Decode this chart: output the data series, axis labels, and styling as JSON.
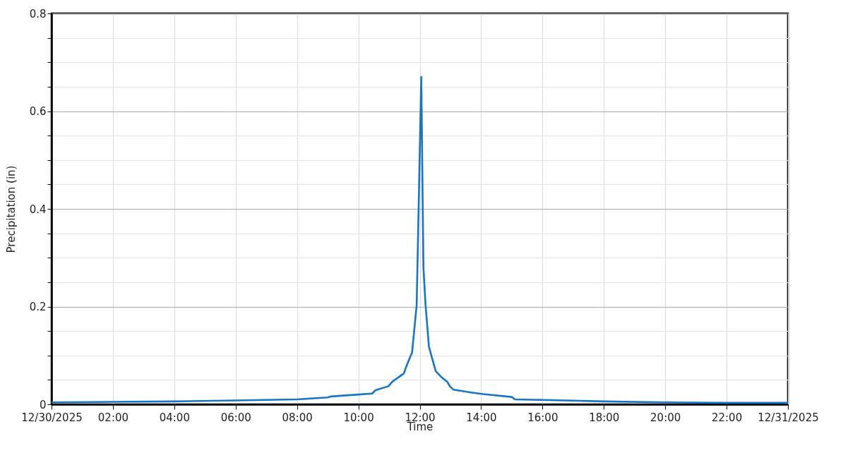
{
  "chart_data": {
    "type": "line",
    "xlabel": "Time",
    "ylabel": "Precipitation (in)",
    "x": [
      0,
      2,
      4,
      6,
      8,
      9,
      9.1,
      10,
      10.45,
      10.56,
      10.98,
      11.1,
      11.48,
      11.59,
      11.75,
      11.9,
      12.05,
      12.12,
      12.19,
      12.3,
      12.52,
      12.7,
      12.9,
      12.98,
      13.1,
      13.6,
      14.06,
      15,
      15.1,
      16,
      18,
      20,
      22,
      24
    ],
    "series": [
      {
        "color": "#1874c4",
        "values": [
          0.004,
          0.005,
          0.006,
          0.008,
          0.01,
          0.014,
          0.016,
          0.02,
          0.022,
          0.029,
          0.037,
          0.046,
          0.063,
          0.082,
          0.106,
          0.203,
          0.67,
          0.28,
          0.203,
          0.118,
          0.068,
          0.056,
          0.046,
          0.037,
          0.03,
          0.025,
          0.021,
          0.015,
          0.01,
          0.009,
          0.006,
          0.004,
          0.003,
          0.003
        ]
      }
    ],
    "xlim": [
      0,
      24
    ],
    "xticks": [
      {
        "value": 0,
        "label": "12/30/2025"
      },
      {
        "value": 2,
        "label": "02:00"
      },
      {
        "value": 4,
        "label": "04:00"
      },
      {
        "value": 6,
        "label": "06:00"
      },
      {
        "value": 8,
        "label": "08:00"
      },
      {
        "value": 10,
        "label": "10:00"
      },
      {
        "value": 12,
        "label": "12:00"
      },
      {
        "value": 14,
        "label": "14:00"
      },
      {
        "value": 16,
        "label": "16:00"
      },
      {
        "value": 18,
        "label": "18:00"
      },
      {
        "value": 20,
        "label": "20:00"
      },
      {
        "value": 22,
        "label": "22:00"
      },
      {
        "value": 24,
        "label": "12/31/2025"
      }
    ],
    "ylim": [
      0,
      0.8
    ],
    "yticks": [
      0,
      {
        "value": 0.05,
        "label": null
      },
      {
        "value": 0.1,
        "label": null
      },
      {
        "value": 0.15,
        "label": null
      },
      0.2,
      {
        "value": 0.25,
        "label": null
      },
      {
        "value": 0.3,
        "label": null
      },
      {
        "value": 0.35,
        "label": null
      },
      0.4,
      {
        "value": 0.45,
        "label": null
      },
      {
        "value": 0.5,
        "label": null
      },
      {
        "value": 0.55,
        "label": null
      },
      0.6,
      {
        "value": 0.65,
        "label": null
      },
      {
        "value": 0.7,
        "label": null
      },
      {
        "value": 0.75,
        "label": null
      },
      0.8
    ],
    "grid": true,
    "marker": "none",
    "line_style": "solid"
  }
}
